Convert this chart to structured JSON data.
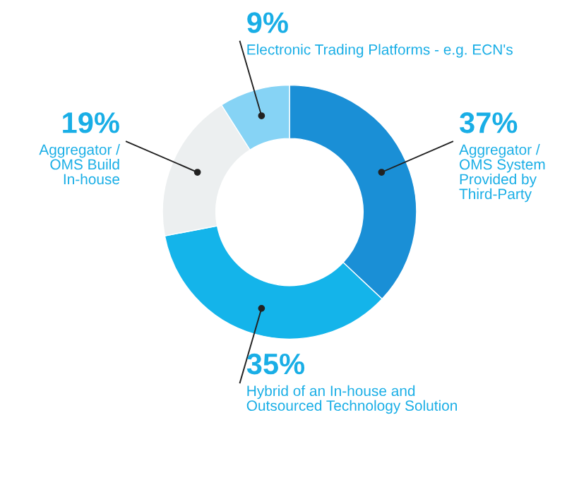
{
  "chart_data": {
    "type": "donut",
    "categories": [
      "Aggregator /\nOMS System\nProvided by\nThird-Party",
      "Hybrid of an In-house and\nOutsourced Technology Solution",
      "Aggregator /\nOMS Build\nIn-house",
      "Electronic Trading Platforms - e.g. ECN's"
    ],
    "values": [
      37,
      35,
      19,
      9
    ],
    "colors": [
      "#1a8fd6",
      "#14b4ea",
      "#eceff0",
      "#86d3f5"
    ],
    "value_labels": [
      "37%",
      "35%",
      "19%",
      "9%"
    ]
  }
}
